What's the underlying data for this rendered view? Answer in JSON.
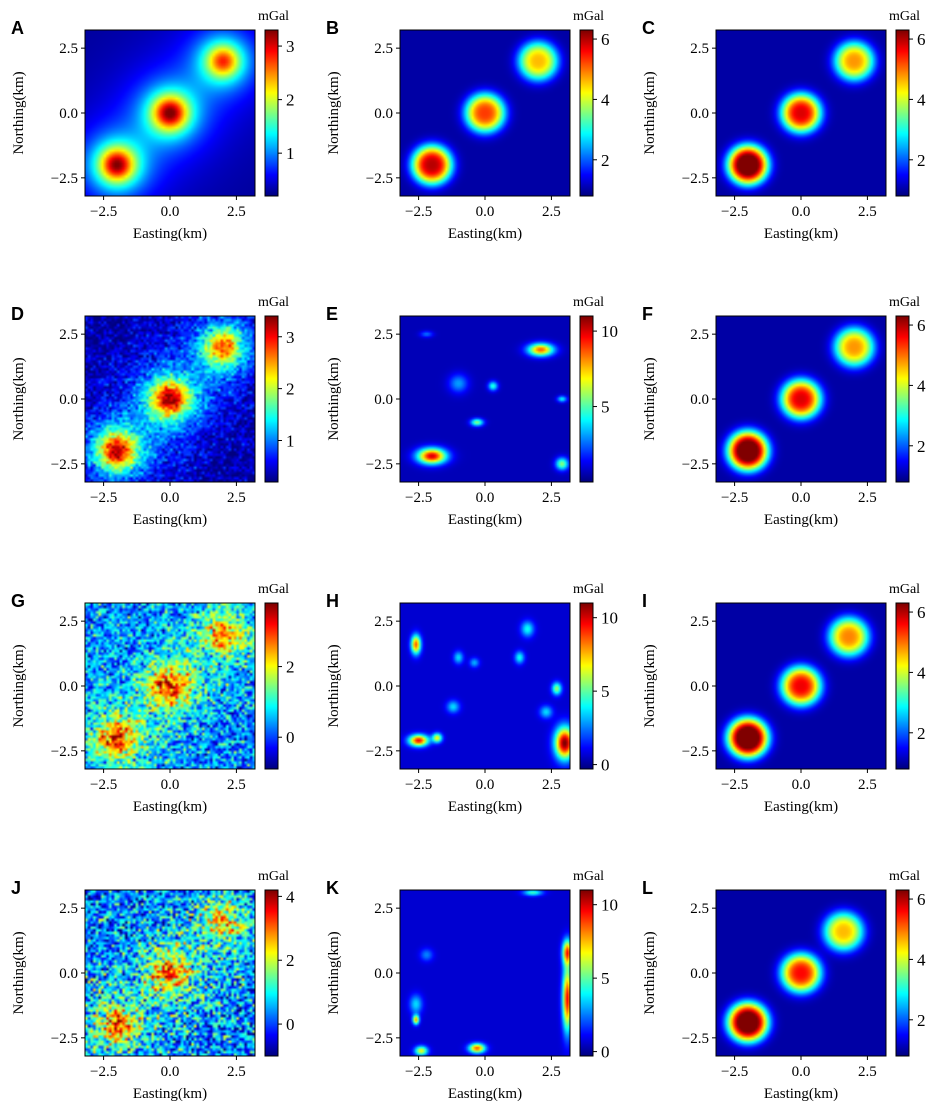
{
  "chart_data": [
    {
      "panel": "A",
      "type": "heatmap",
      "unit": "mGal",
      "pattern": "smooth",
      "xlabel": "Easting(km)",
      "ylabel": "Northing(km)",
      "xlim": [
        -3.2,
        3.2
      ],
      "ylim": [
        -3.2,
        3.2
      ],
      "xticks": [
        "−2.5",
        "0.0",
        "2.5"
      ],
      "yticks": [
        "−2.5",
        "0.0",
        "2.5"
      ],
      "colorbar": {
        "min": 0.2,
        "max": 3.3,
        "ticks": [
          "1",
          "2",
          "3"
        ],
        "tick_values": [
          1,
          2,
          3
        ]
      },
      "sources": [
        {
          "x": -2,
          "y": -2,
          "amp": 3.0
        },
        {
          "x": 0,
          "y": 0,
          "amp": 3.0
        },
        {
          "x": 2,
          "y": 2,
          "amp": 2.5
        }
      ]
    },
    {
      "panel": "B",
      "type": "heatmap",
      "unit": "mGal",
      "pattern": "sharp",
      "xlabel": "Easting(km)",
      "ylabel": "Northing(km)",
      "xlim": [
        -3.2,
        3.2
      ],
      "ylim": [
        -3.2,
        3.2
      ],
      "xticks": [
        "−2.5",
        "0.0",
        "2.5"
      ],
      "yticks": [
        "−2.5",
        "0.0",
        "2.5"
      ],
      "colorbar": {
        "min": 0.8,
        "max": 6.3,
        "ticks": [
          "2",
          "4",
          "6"
        ],
        "tick_values": [
          2,
          4,
          6
        ]
      },
      "sources": [
        {
          "x": -2,
          "y": -2,
          "amp": 5.0
        },
        {
          "x": 0,
          "y": 0,
          "amp": 4.3
        },
        {
          "x": 2,
          "y": 2,
          "amp": 3.6
        }
      ]
    },
    {
      "panel": "C",
      "type": "heatmap",
      "unit": "mGal",
      "pattern": "sharp",
      "xlabel": "Easting(km)",
      "ylabel": "Northing(km)",
      "xlim": [
        -3.2,
        3.2
      ],
      "ylim": [
        -3.2,
        3.2
      ],
      "xticks": [
        "−2.5",
        "0.0",
        "2.5"
      ],
      "yticks": [
        "−2.5",
        "0.0",
        "2.5"
      ],
      "colorbar": {
        "min": 0.8,
        "max": 6.3,
        "ticks": [
          "2",
          "4",
          "6"
        ],
        "tick_values": [
          2,
          4,
          6
        ]
      },
      "sources": [
        {
          "x": -2,
          "y": -2,
          "amp": 6.0
        },
        {
          "x": 0,
          "y": 0,
          "amp": 4.8
        },
        {
          "x": 2,
          "y": 2,
          "amp": 3.8
        }
      ]
    },
    {
      "panel": "D",
      "type": "heatmap",
      "unit": "mGal",
      "pattern": "smooth",
      "noise": 0.2,
      "xlabel": "Easting(km)",
      "ylabel": "Northing(km)",
      "xlim": [
        -3.2,
        3.2
      ],
      "ylim": [
        -3.2,
        3.2
      ],
      "xticks": [
        "−2.5",
        "0.0",
        "2.5"
      ],
      "yticks": [
        "−2.5",
        "0.0",
        "2.5"
      ],
      "colorbar": {
        "min": 0.2,
        "max": 3.4,
        "ticks": [
          "1",
          "2",
          "3"
        ],
        "tick_values": [
          1,
          2,
          3
        ]
      },
      "sources": [
        {
          "x": -2,
          "y": -2,
          "amp": 3.0
        },
        {
          "x": 0,
          "y": 0,
          "amp": 3.0
        },
        {
          "x": 2,
          "y": 2,
          "amp": 2.5
        }
      ]
    },
    {
      "panel": "E",
      "type": "heatmap",
      "unit": "mGal",
      "pattern": "blobs",
      "xlabel": "Easting(km)",
      "ylabel": "Northing(km)",
      "xlim": [
        -3.2,
        3.2
      ],
      "ylim": [
        -3.2,
        3.2
      ],
      "xticks": [
        "−2.5",
        "0.0",
        "2.5"
      ],
      "yticks": [
        "−2.5",
        "0.0",
        "2.5"
      ],
      "colorbar": {
        "min": 0,
        "max": 11,
        "ticks": [
          "5",
          "10"
        ],
        "tick_values": [
          5,
          10
        ]
      },
      "blobs": [
        {
          "x": -2.0,
          "y": -2.2,
          "amp": 9.5,
          "sx": 0.45,
          "sy": 0.25
        },
        {
          "x": 2.1,
          "y": 1.9,
          "amp": 8.0,
          "sx": 0.4,
          "sy": 0.2
        },
        {
          "x": -0.3,
          "y": -0.9,
          "amp": 5.0,
          "sx": 0.2,
          "sy": 0.12
        },
        {
          "x": 0.3,
          "y": 0.5,
          "amp": 4.0,
          "sx": 0.15,
          "sy": 0.15
        },
        {
          "x": 2.9,
          "y": -2.5,
          "amp": 5.0,
          "sx": 0.2,
          "sy": 0.2
        },
        {
          "x": 2.9,
          "y": 0.0,
          "amp": 3.5,
          "sx": 0.15,
          "sy": 0.1
        },
        {
          "x": -2.2,
          "y": 2.5,
          "amp": 2.0,
          "sx": 0.2,
          "sy": 0.1
        },
        {
          "x": -1.0,
          "y": 0.6,
          "amp": 2.5,
          "sx": 0.3,
          "sy": 0.3
        }
      ]
    },
    {
      "panel": "F",
      "type": "heatmap",
      "unit": "mGal",
      "pattern": "sharp",
      "xlabel": "Easting(km)",
      "ylabel": "Northing(km)",
      "xlim": [
        -3.2,
        3.2
      ],
      "ylim": [
        -3.2,
        3.2
      ],
      "xticks": [
        "−2.5",
        "0.0",
        "2.5"
      ],
      "yticks": [
        "−2.5",
        "0.0",
        "2.5"
      ],
      "colorbar": {
        "min": 0.8,
        "max": 6.3,
        "ticks": [
          "2",
          "4",
          "6"
        ],
        "tick_values": [
          2,
          4,
          6
        ]
      },
      "sources": [
        {
          "x": -2,
          "y": -2,
          "amp": 6.0
        },
        {
          "x": 0,
          "y": 0,
          "amp": 4.8
        },
        {
          "x": 2,
          "y": 2,
          "amp": 3.8
        }
      ]
    },
    {
      "panel": "G",
      "type": "heatmap",
      "unit": "mGal",
      "pattern": "smooth",
      "noise": 0.55,
      "xlabel": "Easting(km)",
      "ylabel": "Northing(km)",
      "xlim": [
        -3.2,
        3.2
      ],
      "ylim": [
        -3.2,
        3.2
      ],
      "xticks": [
        "−2.5",
        "0.0",
        "2.5"
      ],
      "yticks": [
        "−2.5",
        "0.0",
        "2.5"
      ],
      "colorbar": {
        "min": -0.9,
        "max": 3.8,
        "ticks": [
          "0",
          "2"
        ],
        "tick_values": [
          0,
          2
        ]
      },
      "sources": [
        {
          "x": -2,
          "y": -2,
          "amp": 2.8
        },
        {
          "x": 0,
          "y": 0,
          "amp": 2.8
        },
        {
          "x": 2,
          "y": 2,
          "amp": 2.3
        }
      ]
    },
    {
      "panel": "H",
      "type": "heatmap",
      "unit": "mGal",
      "pattern": "blobs",
      "xlabel": "Easting(km)",
      "ylabel": "Northing(km)",
      "xlim": [
        -3.2,
        3.2
      ],
      "ylim": [
        -3.2,
        3.2
      ],
      "xticks": [
        "−2.5",
        "0.0",
        "2.5"
      ],
      "yticks": [
        "−2.5",
        "0.0",
        "2.5"
      ],
      "colorbar": {
        "min": -0.3,
        "max": 11,
        "ticks": [
          "0",
          "5",
          "10"
        ],
        "tick_values": [
          0,
          5,
          10
        ]
      },
      "blobs": [
        {
          "x": -2.6,
          "y": 1.6,
          "amp": 8.0,
          "sx": 0.15,
          "sy": 0.3
        },
        {
          "x": -2.5,
          "y": -2.1,
          "amp": 9.0,
          "sx": 0.3,
          "sy": 0.18
        },
        {
          "x": -1.8,
          "y": -2.0,
          "amp": 6.0,
          "sx": 0.15,
          "sy": 0.15
        },
        {
          "x": 3.0,
          "y": -2.2,
          "amp": 10.5,
          "sx": 0.3,
          "sy": 0.5
        },
        {
          "x": 2.7,
          "y": -0.1,
          "amp": 5.0,
          "sx": 0.15,
          "sy": 0.2
        },
        {
          "x": 1.6,
          "y": 2.2,
          "amp": 3.5,
          "sx": 0.2,
          "sy": 0.25
        },
        {
          "x": 1.3,
          "y": 1.1,
          "amp": 3.5,
          "sx": 0.15,
          "sy": 0.2
        },
        {
          "x": -1.0,
          "y": 1.1,
          "amp": 3.0,
          "sx": 0.15,
          "sy": 0.2
        },
        {
          "x": -0.4,
          "y": 0.9,
          "amp": 2.5,
          "sx": 0.15,
          "sy": 0.15
        },
        {
          "x": -1.2,
          "y": -0.8,
          "amp": 3.0,
          "sx": 0.2,
          "sy": 0.2
        },
        {
          "x": 2.3,
          "y": -1.0,
          "amp": 3.0,
          "sx": 0.2,
          "sy": 0.2
        }
      ]
    },
    {
      "panel": "I",
      "type": "heatmap",
      "unit": "mGal",
      "pattern": "sharp",
      "xlabel": "Easting(km)",
      "ylabel": "Northing(km)",
      "xlim": [
        -3.2,
        3.2
      ],
      "ylim": [
        -3.2,
        3.2
      ],
      "xticks": [
        "−2.5",
        "0.0",
        "2.5"
      ],
      "yticks": [
        "−2.5",
        "0.0",
        "2.5"
      ],
      "colorbar": {
        "min": 0.8,
        "max": 6.3,
        "ticks": [
          "2",
          "4",
          "6"
        ],
        "tick_values": [
          2,
          4,
          6
        ]
      },
      "sources": [
        {
          "x": -2,
          "y": -2,
          "amp": 6.2
        },
        {
          "x": 0,
          "y": 0,
          "amp": 4.7
        },
        {
          "x": 1.8,
          "y": 1.9,
          "amp": 3.9
        }
      ]
    },
    {
      "panel": "J",
      "type": "heatmap",
      "unit": "mGal",
      "pattern": "smooth",
      "noise": 0.75,
      "xlabel": "Easting(km)",
      "ylabel": "Northing(km)",
      "xlim": [
        -3.2,
        3.2
      ],
      "ylim": [
        -3.2,
        3.2
      ],
      "xticks": [
        "−2.5",
        "0.0",
        "2.5"
      ],
      "yticks": [
        "−2.5",
        "0.0",
        "2.5"
      ],
      "colorbar": {
        "min": -1.0,
        "max": 4.2,
        "ticks": [
          "0",
          "2",
          "4"
        ],
        "tick_values": [
          0,
          2,
          4
        ]
      },
      "sources": [
        {
          "x": -2,
          "y": -2,
          "amp": 2.8
        },
        {
          "x": 0,
          "y": 0,
          "amp": 2.8
        },
        {
          "x": 2,
          "y": 2,
          "amp": 2.3
        }
      ]
    },
    {
      "panel": "K",
      "type": "heatmap",
      "unit": "mGal",
      "pattern": "blobs",
      "xlabel": "Easting(km)",
      "ylabel": "Northing(km)",
      "xlim": [
        -3.2,
        3.2
      ],
      "ylim": [
        -3.2,
        3.2
      ],
      "xticks": [
        "−2.5",
        "0.0",
        "2.5"
      ],
      "yticks": [
        "−2.5",
        "0.0",
        "2.5"
      ],
      "colorbar": {
        "min": -0.3,
        "max": 11,
        "ticks": [
          "0",
          "5",
          "10"
        ],
        "tick_values": [
          0,
          5,
          10
        ]
      },
      "blobs": [
        {
          "x": 3.1,
          "y": -1.0,
          "amp": 9.0,
          "sx": 0.15,
          "sy": 1.0
        },
        {
          "x": 3.1,
          "y": 0.8,
          "amp": 8.0,
          "sx": 0.15,
          "sy": 0.4
        },
        {
          "x": -2.6,
          "y": -1.8,
          "amp": 7.0,
          "sx": 0.1,
          "sy": 0.15
        },
        {
          "x": -2.4,
          "y": -3.0,
          "amp": 6.0,
          "sx": 0.2,
          "sy": 0.15
        },
        {
          "x": -0.3,
          "y": -2.9,
          "amp": 8.0,
          "sx": 0.25,
          "sy": 0.15
        },
        {
          "x": -2.2,
          "y": 0.7,
          "amp": 2.0,
          "sx": 0.2,
          "sy": 0.2
        },
        {
          "x": 1.8,
          "y": 3.1,
          "amp": 4.0,
          "sx": 0.3,
          "sy": 0.1
        },
        {
          "x": -2.6,
          "y": -1.2,
          "amp": 3.0,
          "sx": 0.2,
          "sy": 0.3
        }
      ]
    },
    {
      "panel": "L",
      "type": "heatmap",
      "unit": "mGal",
      "pattern": "sharp",
      "xlabel": "Easting(km)",
      "ylabel": "Northing(km)",
      "xlim": [
        -3.2,
        3.2
      ],
      "ylim": [
        -3.2,
        3.2
      ],
      "xticks": [
        "−2.5",
        "0.0",
        "2.5"
      ],
      "yticks": [
        "−2.5",
        "0.0",
        "2.5"
      ],
      "colorbar": {
        "min": 0.8,
        "max": 6.3,
        "ticks": [
          "2",
          "4",
          "6"
        ],
        "tick_values": [
          2,
          4,
          6
        ]
      },
      "sources": [
        {
          "x": -2,
          "y": -1.9,
          "amp": 6.0
        },
        {
          "x": 0,
          "y": 0,
          "amp": 4.6
        },
        {
          "x": 1.6,
          "y": 1.6,
          "amp": 3.6
        }
      ]
    }
  ]
}
